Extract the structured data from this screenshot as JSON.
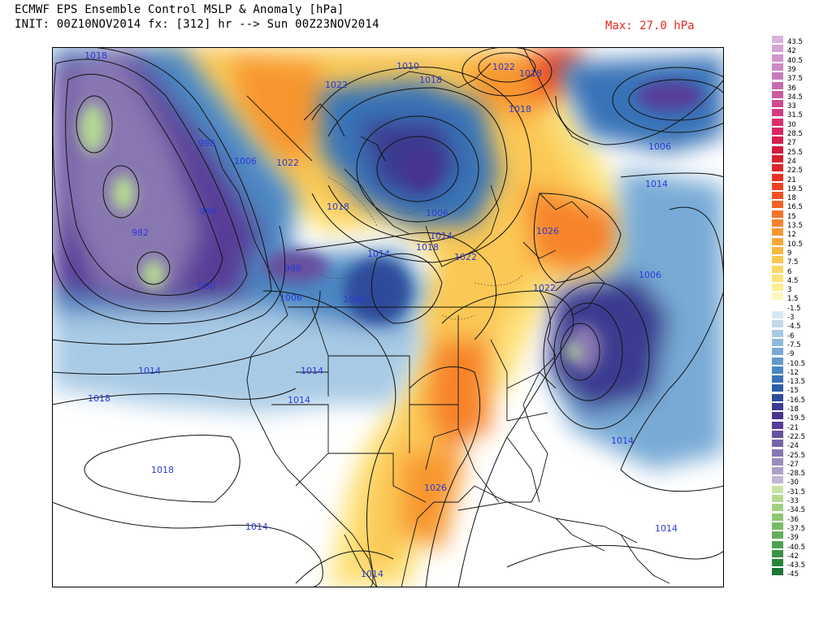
{
  "header": {
    "title": "ECMWF EPS Ensemble Control MSLP & Anomaly [hPa]",
    "init": "INIT: 00Z10NOV2014 fx: [312] hr --> Sun 00Z23NOV2014",
    "max": "Max: 27.0 hPa"
  },
  "isobar_labels": [
    {
      "id": "iso-1018-yukon",
      "text": "1018"
    },
    {
      "id": "iso-1022-nwt",
      "text": "1022"
    },
    {
      "id": "iso-1010-arctic",
      "text": "1010"
    },
    {
      "id": "iso-1018-arctic",
      "text": "1018"
    },
    {
      "id": "iso-1022-green",
      "text": "1022"
    },
    {
      "id": "iso-1018-green",
      "text": "1018"
    },
    {
      "id": "iso-1018-baffin",
      "text": "1018"
    },
    {
      "id": "iso-998-gulf",
      "text": "998"
    },
    {
      "id": "iso-1006-bc",
      "text": "1006"
    },
    {
      "id": "iso-1022-yt",
      "text": "1022"
    },
    {
      "id": "iso-982",
      "text": "982"
    },
    {
      "id": "iso-990",
      "text": "990"
    },
    {
      "id": "iso-998-coast",
      "text": "998"
    },
    {
      "id": "iso-1018-hudson",
      "text": "1018"
    },
    {
      "id": "iso-1006-hudson",
      "text": "1006"
    },
    {
      "id": "iso-1014-ont",
      "text": "1014"
    },
    {
      "id": "iso-1018-ont",
      "text": "1018"
    },
    {
      "id": "iso-1022-que",
      "text": "1022"
    },
    {
      "id": "iso-1026-que",
      "text": "1026"
    },
    {
      "id": "iso-1022-ne",
      "text": "1022"
    },
    {
      "id": "iso-1014-sask",
      "text": "1014"
    },
    {
      "id": "iso-1006-wa",
      "text": "1006"
    },
    {
      "id": "iso-1006-mt",
      "text": "1006"
    },
    {
      "id": "iso-998-or",
      "text": "998"
    },
    {
      "id": "iso-1006-atl",
      "text": "1006"
    },
    {
      "id": "iso-1014-atl",
      "text": "1014"
    },
    {
      "id": "iso-1006-natl",
      "text": "1006"
    },
    {
      "id": "iso-1014-pac",
      "text": "1014"
    },
    {
      "id": "iso-1018-pac",
      "text": "1018"
    },
    {
      "id": "iso-1014-nv",
      "text": "1014"
    },
    {
      "id": "iso-1014-ut",
      "text": "1014"
    },
    {
      "id": "iso-1014-catl",
      "text": "1014"
    },
    {
      "id": "iso-1018-spac",
      "text": "1018"
    },
    {
      "id": "iso-1014-spac",
      "text": "1014"
    },
    {
      "id": "iso-1026-tx",
      "text": "1026"
    },
    {
      "id": "iso-1014-carib",
      "text": "1014"
    },
    {
      "id": "iso-1014-mex",
      "text": "1014"
    }
  ],
  "legend": {
    "items": [
      {
        "label": "43.5",
        "color": "#d7b3d8"
      },
      {
        "label": "42",
        "color": "#d3a5d2"
      },
      {
        "label": "40.5",
        "color": "#cf97cc"
      },
      {
        "label": "39",
        "color": "#cb89c5"
      },
      {
        "label": "37.5",
        "color": "#c77bbd"
      },
      {
        "label": "36",
        "color": "#c96aaf"
      },
      {
        "label": "34.5",
        "color": "#cc5a9f"
      },
      {
        "label": "33",
        "color": "#d04a90"
      },
      {
        "label": "31.5",
        "color": "#d43a80"
      },
      {
        "label": "30",
        "color": "#d82e6f"
      },
      {
        "label": "28.5",
        "color": "#da2560"
      },
      {
        "label": "27",
        "color": "#d81e50"
      },
      {
        "label": "25.5",
        "color": "#d61a3e"
      },
      {
        "label": "24",
        "color": "#d8202e"
      },
      {
        "label": "22.5",
        "color": "#e0262a"
      },
      {
        "label": "21",
        "color": "#e83126"
      },
      {
        "label": "19.5",
        "color": "#ef4024"
      },
      {
        "label": "18",
        "color": "#f35023"
      },
      {
        "label": "16.5",
        "color": "#f56124"
      },
      {
        "label": "15",
        "color": "#f67226"
      },
      {
        "label": "13.5",
        "color": "#f7842a"
      },
      {
        "label": "12",
        "color": "#f8962f"
      },
      {
        "label": "10.5",
        "color": "#f9a838"
      },
      {
        "label": "9",
        "color": "#fab844"
      },
      {
        "label": "7.5",
        "color": "#fbc854"
      },
      {
        "label": "6",
        "color": "#fcd666"
      },
      {
        "label": "4.5",
        "color": "#fde27a"
      },
      {
        "label": "3",
        "color": "#feed92"
      },
      {
        "label": "1.5",
        "color": "#fff6bd"
      },
      {
        "label": "-1.5",
        "color": "#ffffff"
      },
      {
        "label": "-3",
        "color": "#d6e7f2"
      },
      {
        "label": "-4.5",
        "color": "#bfd8ec"
      },
      {
        "label": "-6",
        "color": "#a8cae5"
      },
      {
        "label": "-7.5",
        "color": "#90badd"
      },
      {
        "label": "-9",
        "color": "#78aad5"
      },
      {
        "label": "-10.5",
        "color": "#6199cc"
      },
      {
        "label": "-12",
        "color": "#4b87c2"
      },
      {
        "label": "-13.5",
        "color": "#3773b7"
      },
      {
        "label": "-15",
        "color": "#2a5fa9"
      },
      {
        "label": "-16.5",
        "color": "#2e4b9a"
      },
      {
        "label": "-18",
        "color": "#3b3b8f"
      },
      {
        "label": "-19.5",
        "color": "#4a3390"
      },
      {
        "label": "-21",
        "color": "#583d98"
      },
      {
        "label": "-22.5",
        "color": "#67509f"
      },
      {
        "label": "-24",
        "color": "#7764a8"
      },
      {
        "label": "-25.5",
        "color": "#8877b1"
      },
      {
        "label": "-27",
        "color": "#9a8bbb"
      },
      {
        "label": "-28.5",
        "color": "#ad9fc7"
      },
      {
        "label": "-30",
        "color": "#c2b6d4"
      },
      {
        "label": "-31.5",
        "color": "#c7e3a3"
      },
      {
        "label": "-33",
        "color": "#b5da92"
      },
      {
        "label": "-34.5",
        "color": "#a2d082"
      },
      {
        "label": "-36",
        "color": "#8ec674"
      },
      {
        "label": "-37.5",
        "color": "#79bb67"
      },
      {
        "label": "-39",
        "color": "#63af5b"
      },
      {
        "label": "-40.5",
        "color": "#4ea24f"
      },
      {
        "label": "-42",
        "color": "#3b9445"
      },
      {
        "label": "-43.5",
        "color": "#2a853c"
      },
      {
        "label": "-45",
        "color": "#1b7634"
      }
    ]
  },
  "colors": {
    "isobar_label": "#2a3bd6",
    "max_label": "#e8261f"
  }
}
